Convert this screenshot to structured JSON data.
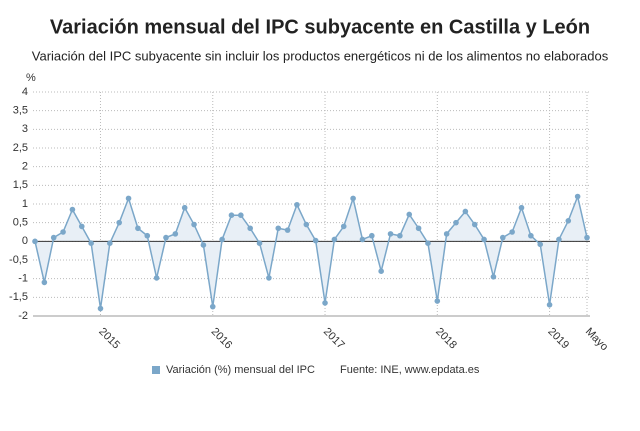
{
  "chart_data": {
    "type": "line",
    "title": "Variación mensual del IPC subyacente en Castilla y León",
    "subtitle": "Variación del IPC subyacente sin incluir los productos energéticos ni de los alimentos no elaborados",
    "y_label": "%",
    "source": "Fuente: INE, www.epdata.es",
    "categories": [
      null,
      null,
      null,
      null,
      null,
      null,
      null,
      "2015",
      null,
      null,
      null,
      null,
      null,
      null,
      null,
      null,
      null,
      null,
      null,
      "2016",
      null,
      null,
      null,
      null,
      null,
      null,
      null,
      null,
      null,
      null,
      null,
      "2017",
      null,
      null,
      null,
      null,
      null,
      null,
      null,
      null,
      null,
      null,
      null,
      "2018",
      null,
      null,
      null,
      null,
      null,
      null,
      null,
      null,
      null,
      null,
      null,
      "2019",
      null,
      null,
      null,
      "Mayo"
    ],
    "series": [
      {
        "name": "Variación (%) mensual del IPC",
        "color": "#7ba7c9",
        "fill": "#e8eff6",
        "values": [
          0,
          -1.1,
          0.1,
          0.25,
          0.85,
          0.4,
          -0.05,
          -1.8,
          -0.05,
          0.5,
          1.15,
          0.35,
          0.15,
          -0.98,
          0.1,
          0.2,
          0.9,
          0.45,
          -0.1,
          -1.75,
          0.05,
          0.7,
          0.7,
          0.35,
          -0.05,
          -0.98,
          0.35,
          0.3,
          0.98,
          0.45,
          0.02,
          -1.65,
          0.05,
          0.4,
          1.15,
          0.05,
          0.15,
          -0.8,
          0.2,
          0.15,
          0.72,
          0.35,
          -0.05,
          -1.6,
          0.2,
          0.5,
          0.8,
          0.45,
          0.05,
          -0.95,
          0.1,
          0.25,
          0.9,
          0.15,
          -0.08,
          -1.7,
          0.05,
          0.55,
          1.2,
          0.1
        ]
      }
    ],
    "ylim": [
      -2,
      4
    ],
    "yticks": [
      -2,
      {
        "value": -1.5,
        "label": "-1,5"
      },
      -1,
      {
        "value": -0.5,
        "label": "-0,5"
      },
      0,
      {
        "value": 0.5,
        "label": "0,5"
      },
      1,
      {
        "value": 1.5,
        "label": "1,5"
      },
      2,
      {
        "value": 2.5,
        "label": "2,5"
      },
      3,
      {
        "value": 3.5,
        "label": "3,5"
      },
      4
    ],
    "grid": true
  }
}
